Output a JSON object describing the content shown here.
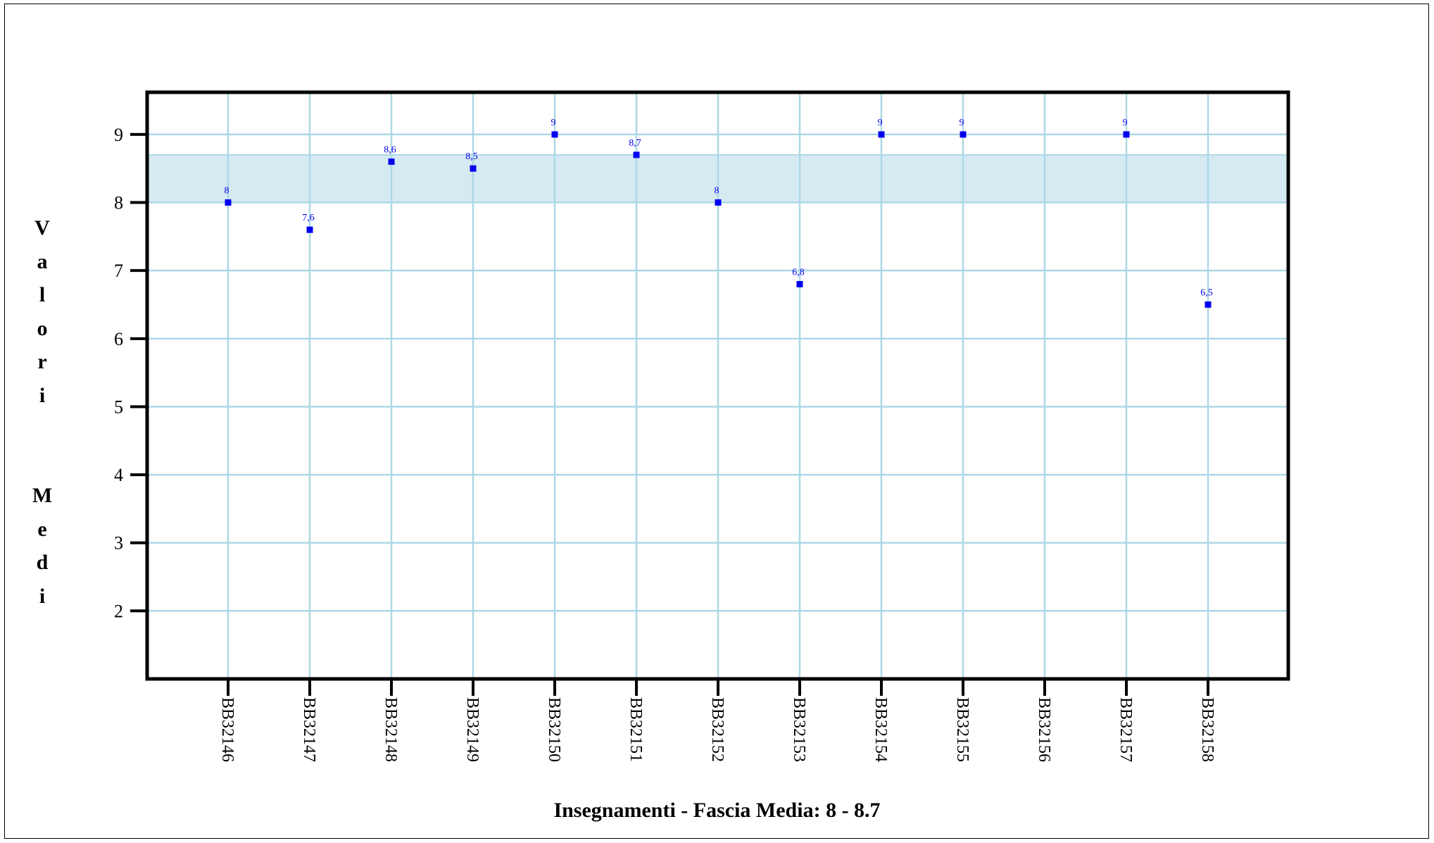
{
  "chart_data": {
    "type": "scatter",
    "categories": [
      "BB32146",
      "BB32147",
      "BB32148",
      "BB32149",
      "BB32150",
      "BB32151",
      "BB32152",
      "BB32153",
      "BB32154",
      "BB32155",
      "BB32156",
      "BB32157",
      "BB32158"
    ],
    "values": [
      8,
      7.6,
      8.6,
      8.5,
      9,
      8.7,
      8,
      6.8,
      9,
      9,
      null,
      9,
      6.5
    ],
    "data_labels": [
      "8",
      "7,6",
      "8,6",
      "8,5",
      "9",
      "8,7",
      "8",
      "6,8",
      "9",
      "9",
      "",
      "9",
      "6,5"
    ],
    "yticks": [
      2,
      3,
      4,
      5,
      6,
      7,
      8,
      9
    ],
    "ylim": [
      1,
      9.62
    ],
    "band": [
      8,
      8.7
    ],
    "ylabel": "Valori  Medi",
    "xlabel": "Insegnamenti - Fascia Media: 8 - 8.7",
    "grid": true,
    "colors": {
      "point": "#0000ee",
      "grid": "#add8e6",
      "band": "#d6eaf2",
      "axis": "#000000"
    }
  }
}
